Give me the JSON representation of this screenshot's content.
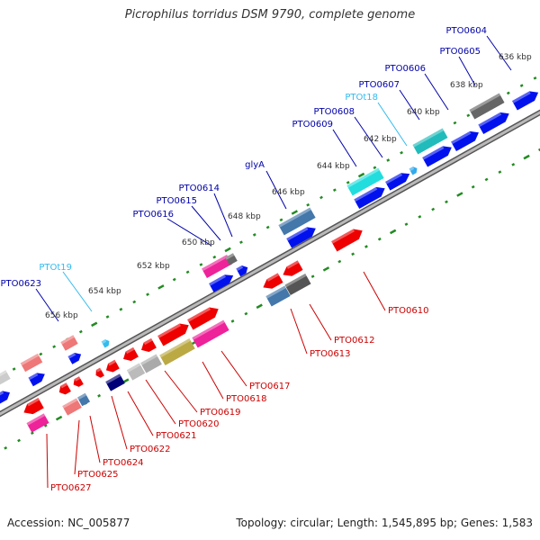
{
  "title": "Picrophilus torridus DSM 9790, complete genome",
  "footer": {
    "accession": "Accession: NC_005877",
    "summary": "Topology: circular; Length: 1,545,895 bp; Genes: 1,583"
  },
  "colors": {
    "backbone": "#888888",
    "tick": "#228B22",
    "plus_label": "#0000aa",
    "minus_label": "#cc0000",
    "trna_label": "#33bbee",
    "scale_label": "#333333"
  },
  "scale_labels": [
    "636 kbp",
    "638 kbp",
    "640 kbp",
    "642 kbp",
    "644 kbp",
    "646 kbp",
    "648 kbp",
    "650 kbp",
    "652 kbp",
    "654 kbp",
    "656 kbp"
  ],
  "gene_labels": {
    "plus": [
      "PTO0604",
      "PTO0605",
      "PTO0606",
      "PTO0607",
      "PTOt18",
      "PTO0608",
      "PTO0609",
      "glyA",
      "PTO0614",
      "PTO0615",
      "PTO0616",
      "PTOt19",
      "PTO0623"
    ],
    "minus": [
      "PTO0610",
      "PTO0612",
      "PTO0613",
      "PTO0617",
      "PTO0618",
      "PTO0619",
      "PTO0620",
      "PTO0621",
      "PTO0622",
      "PTO0624",
      "PTO0625",
      "PTO0627"
    ]
  }
}
